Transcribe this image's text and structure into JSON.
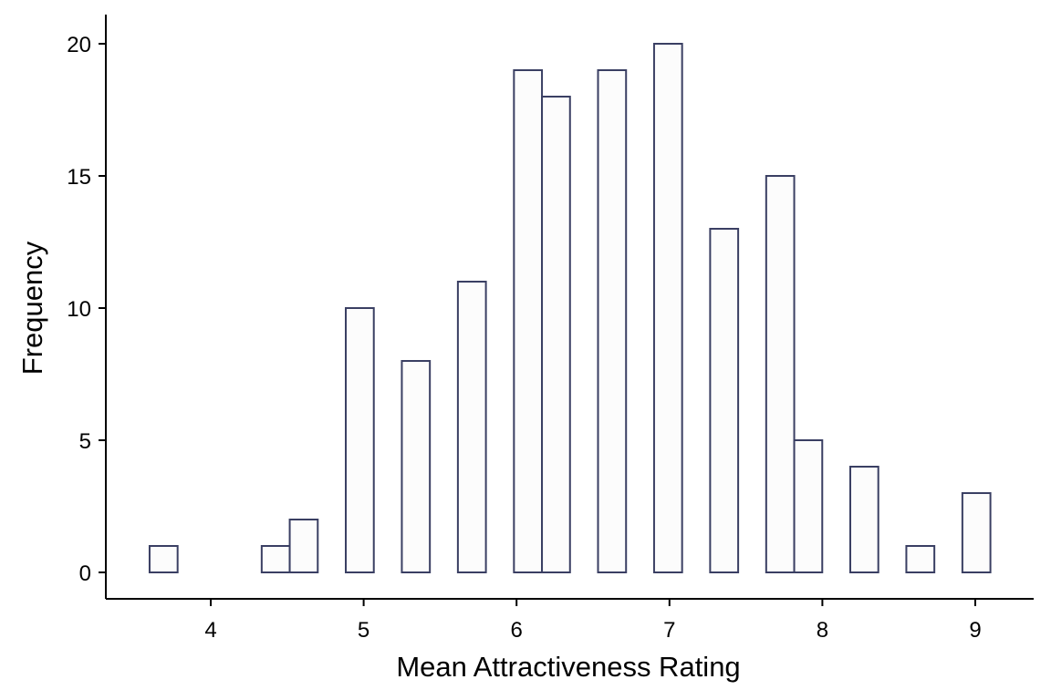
{
  "chart_data": {
    "type": "bar",
    "subtype": "histogram",
    "title": "",
    "xlabel": "Mean Attractiveness Rating",
    "ylabel": "Frequency",
    "xlim": [
      3.5,
      9.4
    ],
    "ylim": [
      -1,
      21
    ],
    "x_ticks": [
      4,
      5,
      6,
      7,
      8,
      9
    ],
    "y_ticks": [
      0,
      5,
      10,
      15,
      20
    ],
    "bin_width": 0.1833,
    "bin_start": 3.6,
    "counts": [
      1,
      0,
      0,
      0,
      1,
      2,
      0,
      10,
      0,
      8,
      0,
      11,
      0,
      19,
      18,
      0,
      19,
      0,
      20,
      0,
      13,
      0,
      15,
      5,
      0,
      4,
      0,
      1,
      0,
      3
    ],
    "grid": false,
    "legend": "none",
    "colors": {
      "bar_fill": "#fcfcfc",
      "bar_edge": "#3a3f63",
      "axis": "#000000"
    }
  }
}
